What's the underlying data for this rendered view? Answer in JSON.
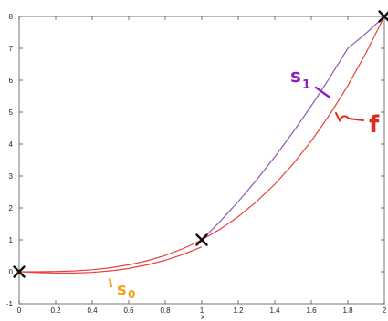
{
  "chart_data": {
    "type": "line",
    "title": "",
    "xlabel": "x",
    "ylabel": "",
    "xlim": [
      0,
      2
    ],
    "ylim": [
      -1,
      8
    ],
    "grid": false,
    "x_ticks": [
      "0",
      "0.2",
      "0.4",
      "0.6",
      "0.8",
      "1",
      "1.2",
      "1.4",
      "1.6",
      "1.8",
      "2"
    ],
    "y_ticks": [
      "-1",
      "0",
      "1",
      "2",
      "3",
      "4",
      "5",
      "6",
      "7",
      "8"
    ],
    "x_tick_values": [
      0,
      0.2,
      0.4,
      0.6,
      0.8,
      1,
      1.2,
      1.4,
      1.6,
      1.8,
      2
    ],
    "y_tick_values": [
      -1,
      0,
      1,
      2,
      3,
      4,
      5,
      6,
      7,
      8
    ],
    "series": [
      {
        "label": "f",
        "color": "#e8403a",
        "x": [
          0,
          0.1,
          0.2,
          0.3,
          0.4,
          0.5,
          0.6,
          0.7,
          0.8,
          0.9,
          1.0,
          1.1,
          1.2,
          1.3,
          1.4,
          1.5,
          1.6,
          1.7,
          1.8,
          1.9,
          2.0
        ],
        "y": [
          0,
          0.001,
          0.008,
          0.027,
          0.064,
          0.125,
          0.216,
          0.343,
          0.512,
          0.729,
          1.0,
          1.331,
          1.728,
          2.197,
          2.744,
          3.375,
          4.096,
          4.913,
          5.832,
          6.859,
          8.0
        ]
      },
      {
        "label": "s0",
        "color": "#e8403a",
        "x": [
          0,
          0.1,
          0.2,
          0.3,
          0.4,
          0.5,
          0.6,
          0.7,
          0.8,
          0.9,
          1.0
        ],
        "y": [
          0,
          -0.0245,
          -0.04,
          -0.0405,
          -0.02,
          0.0275,
          0.104,
          0.2135,
          0.36,
          0.5475,
          0.78
        ]
      },
      {
        "label": "s1",
        "color": "#8e5ab0",
        "x": [
          1.0,
          1.1,
          1.2,
          1.3,
          1.4,
          1.5,
          1.6,
          1.7,
          1.8,
          1.9,
          2.0
        ],
        "y": [
          1.0,
          1.575,
          2.2,
          2.875,
          3.6,
          4.375,
          5.2,
          6.075,
          7.0,
          7.475,
          8.0
        ]
      }
    ],
    "markers": [
      {
        "x": 0,
        "y": 0
      },
      {
        "x": 1,
        "y": 1
      },
      {
        "x": 2,
        "y": 8
      }
    ],
    "annotations": [
      {
        "text": "s",
        "sub": "1",
        "color": "#8e1fc4"
      },
      {
        "text": "f",
        "color": "#e02a1f"
      },
      {
        "text": "s",
        "sub": "0",
        "color": "#f2a31b"
      }
    ]
  }
}
